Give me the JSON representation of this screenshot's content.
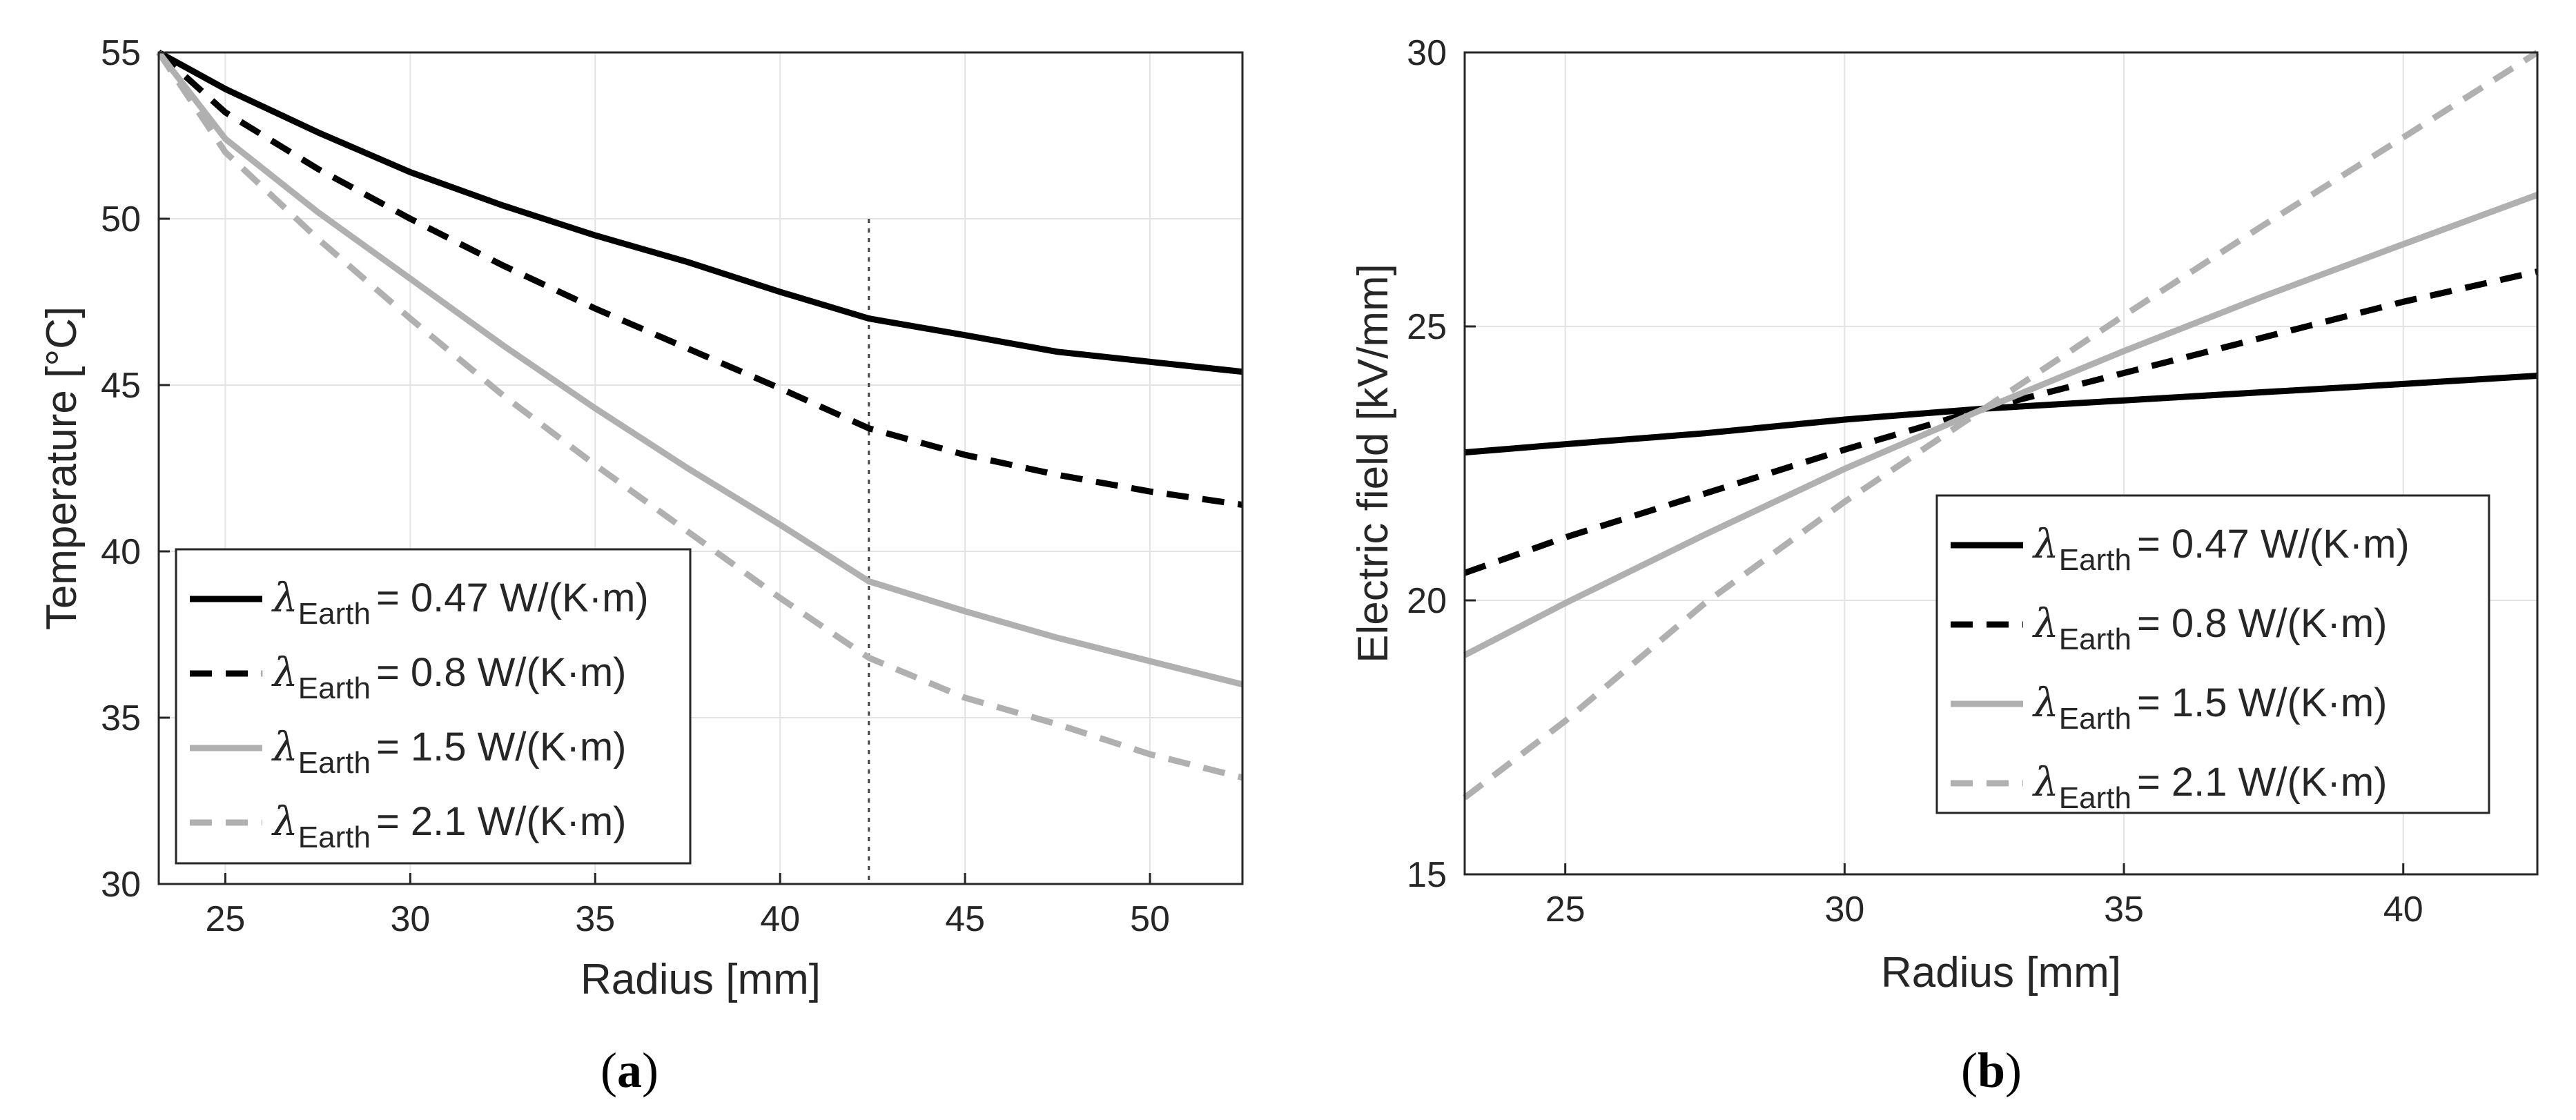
{
  "chart_data": [
    {
      "type": "line",
      "panel": "a",
      "caption_open": "(",
      "caption_letter": "a",
      "caption_close": ")",
      "xlabel": "Radius [mm]",
      "ylabel": "Temperature [°C]",
      "xlim": [
        23.2,
        52.5
      ],
      "ylim": [
        30,
        55
      ],
      "xticks": [
        25,
        30,
        35,
        40,
        45,
        50
      ],
      "yticks": [
        30,
        35,
        40,
        45,
        50,
        55
      ],
      "grid": true,
      "vline": 42.4,
      "legend_position": "bottom-left",
      "series": [
        {
          "name": "λEarth = 0.47 W/(K·m)",
          "symbol": "λ",
          "sub": "Earth",
          "value_text": "= 0.47 W/(K·m)",
          "color": "#000000",
          "dash": "solid",
          "x": [
            23.2,
            25,
            27.5,
            30,
            32.5,
            35,
            37.5,
            40,
            42.4,
            45,
            47.5,
            50,
            52.5
          ],
          "y": [
            55.0,
            53.9,
            52.6,
            51.4,
            50.4,
            49.5,
            48.7,
            47.8,
            47.0,
            46.5,
            46.0,
            45.7,
            45.4
          ]
        },
        {
          "name": "λEarth = 0.8 W/(K·m)",
          "symbol": "λ",
          "sub": "Earth",
          "value_text": "= 0.8 W/(K·m)",
          "color": "#000000",
          "dash": "dashed",
          "x": [
            23.2,
            25,
            27.5,
            30,
            32.5,
            35,
            37.5,
            40,
            42.4,
            45,
            47.5,
            50,
            52.5
          ],
          "y": [
            55.0,
            53.2,
            51.5,
            50.0,
            48.6,
            47.3,
            46.1,
            44.9,
            43.7,
            42.9,
            42.3,
            41.8,
            41.4
          ]
        },
        {
          "name": "λEarth = 1.5 W/(K·m)",
          "symbol": "λ",
          "sub": "Earth",
          "value_text": "= 1.5 W/(K·m)",
          "color": "#b0b0b0",
          "dash": "solid",
          "x": [
            23.2,
            25,
            27.5,
            30,
            32.5,
            35,
            37.5,
            40,
            42.4,
            45,
            47.5,
            50,
            52.5
          ],
          "y": [
            55.0,
            52.4,
            50.2,
            48.2,
            46.2,
            44.3,
            42.5,
            40.8,
            39.1,
            38.2,
            37.4,
            36.7,
            36.0
          ]
        },
        {
          "name": "λEarth = 2.1 W/(K·m)",
          "symbol": "λ",
          "sub": "Earth",
          "value_text": "= 2.1 W/(K·m)",
          "color": "#b0b0b0",
          "dash": "dashed",
          "x": [
            23.2,
            25,
            27.5,
            30,
            32.5,
            35,
            37.5,
            40,
            42.4,
            45,
            47.5,
            50,
            52.5
          ],
          "y": [
            55.0,
            52.0,
            49.4,
            47.0,
            44.7,
            42.6,
            40.6,
            38.6,
            36.8,
            35.6,
            34.8,
            33.9,
            33.2
          ]
        }
      ]
    },
    {
      "type": "line",
      "panel": "b",
      "caption_open": "(",
      "caption_letter": "b",
      "caption_close": ")",
      "xlabel": "Radius [mm]",
      "ylabel": "Electric field [kV/mm]",
      "xlim": [
        23.2,
        42.4
      ],
      "ylim": [
        15,
        30
      ],
      "xticks": [
        25,
        30,
        35,
        40
      ],
      "yticks": [
        15,
        20,
        25,
        30
      ],
      "grid": true,
      "legend_position": "right",
      "series": [
        {
          "name": "λEarth = 0.47 W/(K·m)",
          "symbol": "λ",
          "sub": "Earth",
          "value_text": "= 0.47 W/(K·m)",
          "color": "#000000",
          "dash": "solid",
          "x": [
            23.2,
            25,
            27.5,
            30,
            32.5,
            35,
            37.5,
            40,
            42.4
          ],
          "y": [
            22.7,
            22.85,
            23.05,
            23.3,
            23.5,
            23.65,
            23.8,
            23.95,
            24.1
          ]
        },
        {
          "name": "λEarth = 0.8 W/(K·m)",
          "symbol": "λ",
          "sub": "Earth",
          "value_text": "= 0.8 W/(K·m)",
          "color": "#000000",
          "dash": "dashed",
          "x": [
            23.2,
            25,
            27.5,
            30,
            32.5,
            35,
            37.5,
            40,
            42.4
          ],
          "y": [
            20.5,
            21.15,
            21.95,
            22.75,
            23.5,
            24.15,
            24.8,
            25.45,
            26.0
          ]
        },
        {
          "name": "λEarth = 1.5 W/(K·m)",
          "symbol": "λ",
          "sub": "Earth",
          "value_text": "= 1.5 W/(K·m)",
          "color": "#b0b0b0",
          "dash": "solid",
          "x": [
            23.2,
            25,
            27.5,
            30,
            32.5,
            35,
            37.5,
            40,
            42.4
          ],
          "y": [
            19.0,
            19.95,
            21.2,
            22.4,
            23.5,
            24.55,
            25.55,
            26.5,
            27.4
          ]
        },
        {
          "name": "λEarth = 2.1 W/(K·m)",
          "symbol": "λ",
          "sub": "Earth",
          "value_text": "= 2.1 W/(K·m)",
          "color": "#b0b0b0",
          "dash": "dashed",
          "x": [
            23.2,
            25,
            27.5,
            30,
            32.5,
            35,
            37.5,
            40,
            42.4
          ],
          "y": [
            16.4,
            17.8,
            19.95,
            21.8,
            23.5,
            25.2,
            26.85,
            28.45,
            30.0
          ]
        }
      ]
    }
  ]
}
